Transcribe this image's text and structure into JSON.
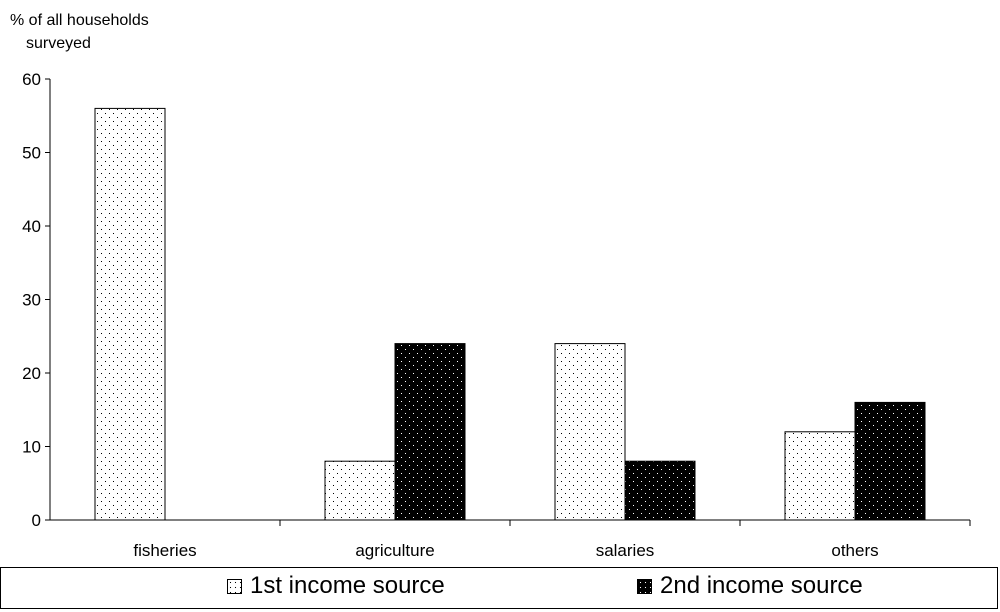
{
  "chart_data": {
    "type": "bar",
    "ylabel_line1": "% of all households",
    "ylabel_line2": "surveyed",
    "categories": [
      "fisheries",
      "agriculture",
      "salaries",
      "others"
    ],
    "series": [
      {
        "name": "1st income source",
        "values": [
          56,
          8,
          24,
          12
        ],
        "pattern": "light-dots"
      },
      {
        "name": "2nd income source",
        "values": [
          0,
          24,
          8,
          16
        ],
        "pattern": "dark-dots"
      }
    ],
    "ylim": [
      0,
      60
    ],
    "yticks": [
      0,
      10,
      20,
      30,
      40,
      50,
      60
    ],
    "grid": false,
    "legend_position": "bottom",
    "colors": {
      "light_fill": "#ffffff",
      "dark_fill": "#000000",
      "dot": "#000000"
    }
  }
}
